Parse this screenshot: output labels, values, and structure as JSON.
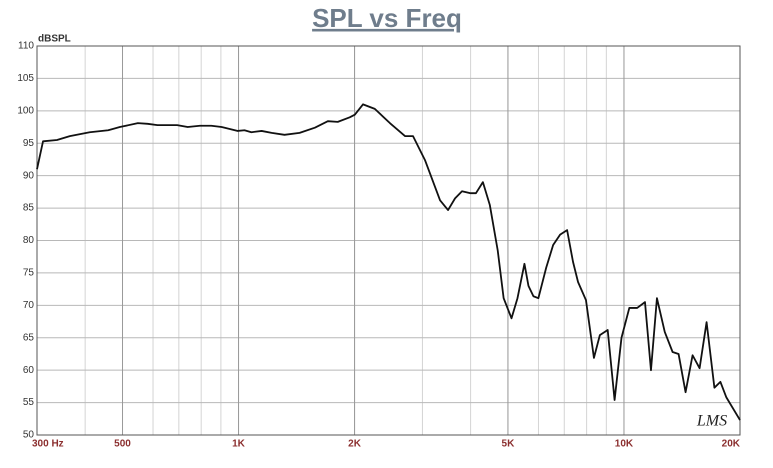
{
  "chart_data": {
    "type": "line",
    "title": "SPL vs Freq",
    "y_label": "dBSPL",
    "logo": "LMS",
    "x_log": true,
    "grid": true,
    "xlim": [
      300,
      20000
    ],
    "ylim": [
      50,
      110
    ],
    "xticks": [
      {
        "value": 300,
        "label": "300 Hz"
      },
      500,
      {
        "value": 1000,
        "label": "1K"
      },
      {
        "value": 2000,
        "label": "2K"
      },
      {
        "value": 5000,
        "label": "5K"
      },
      {
        "value": 10000,
        "label": "10K"
      },
      {
        "value": 20000,
        "label": "20K"
      }
    ],
    "yticks": [
      50,
      55,
      60,
      65,
      70,
      75,
      80,
      85,
      90,
      95,
      100,
      105,
      110
    ],
    "x": [
      300,
      311,
      338,
      365,
      411,
      459,
      492,
      548,
      581,
      616,
      653,
      693,
      738,
      794,
      850,
      904,
      949,
      993,
      1036,
      1080,
      1148,
      1219,
      1316,
      1440,
      1578,
      1705,
      1809,
      1943,
      2003,
      2104,
      2257,
      2471,
      2703,
      2836,
      3046,
      3333,
      3496,
      3645,
      3800,
      3986,
      4130,
      4305,
      4486,
      4703,
      4873,
      5108,
      5293,
      5518,
      5652,
      5822,
      5997,
      6283,
      6550,
      6829,
      7120,
      7376,
      7600,
      7969,
      8357,
      8658,
      9073,
      9455,
      9853,
      10325,
      10820,
      11337,
      11750,
      12177,
      12759,
      13370,
      13856,
      14448,
      15066,
      15710,
      16381,
      17164,
      17788,
      18436,
      20000
    ],
    "series": [
      {
        "name": "SPL",
        "color": "#111111",
        "values": [
          91,
          95.3,
          95.5,
          96.1,
          96.7,
          97.0,
          97.5,
          98.1,
          98.0,
          97.8,
          97.8,
          97.8,
          97.5,
          97.7,
          97.7,
          97.5,
          97.2,
          96.9,
          97.0,
          96.7,
          96.9,
          96.6,
          96.3,
          96.6,
          97.4,
          98.4,
          98.3,
          99.0,
          99.4,
          101.0,
          100.3,
          98.1,
          96.1,
          96.1,
          92.4,
          86.2,
          84.7,
          86.5,
          87.6,
          87.3,
          87.3,
          89.0,
          85.5,
          78.5,
          71.1,
          68.0,
          71.1,
          76.4,
          73.0,
          71.4,
          71.1,
          75.8,
          79.3,
          80.9,
          81.6,
          76.7,
          73.6,
          70.8,
          61.9,
          65.4,
          66.2,
          55.4,
          65.0,
          69.6,
          69.6,
          70.5,
          60.0,
          71.1,
          65.9,
          62.8,
          62.5,
          56.6,
          62.3,
          60.3,
          67.4,
          57.3,
          58.2,
          55.8,
          52.3
        ]
      }
    ]
  }
}
